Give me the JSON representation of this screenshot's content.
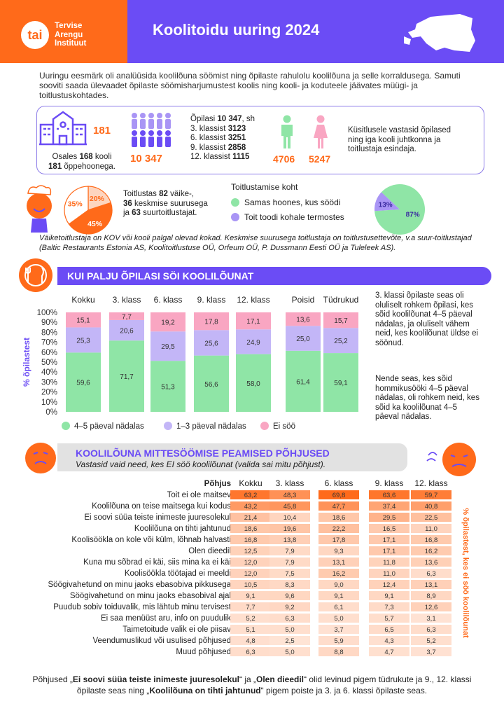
{
  "header": {
    "logo_abbr": "tai",
    "org_line1": "Tervise",
    "org_line2": "Arengu",
    "org_line3": "Instituut",
    "title": "Koolitoidu uuring 2024"
  },
  "intro": "Uuringu eesmärk oli analüüsida koolilõuna söömist ning õpilaste rahulolu koolilõuna ja selle korraldusega. Samuti sooviti saada ülevaadet õpilaste söömisharjumustest koolis ning kooli- ja koduteele jäävates müügi- ja toitlustuskohtades.",
  "stats": {
    "buildings": "181",
    "schools_pre": "Osales ",
    "schools_n": "168",
    "schools_post": " kooli",
    "buildings_n": "181",
    "buildings_post": " õppehoonega.",
    "students_total": "10 347",
    "students_pre": "Õpilasi ",
    "students_n": "10 347",
    "students_post": ", sh",
    "grades": [
      {
        "label": "3. klassist",
        "value": "3123"
      },
      {
        "label": "6. klassist",
        "value": "3251"
      },
      {
        "label": "9. klassist",
        "value": "2858"
      },
      {
        "label": "12. klassist",
        "value": "1115"
      }
    ],
    "boys": "4706",
    "girls": "5247",
    "respondents": "Küsitlusele vastasid õpilased ning iga kooli juhtkonna ja toitlustaja esindaja."
  },
  "caterers": {
    "pie": [
      {
        "label": "20%",
        "value": 20,
        "color": "#fdd5bf"
      },
      {
        "label": "45%",
        "value": 45,
        "color": "#ff6a1a"
      },
      {
        "label": "35%",
        "value": 35,
        "color": "#ffffff"
      }
    ],
    "t1": "Toitlustas ",
    "n_small": "82",
    "t2": " väike-,",
    "n_mid": "36",
    "t3": " keskmise suurusega",
    "t4": "ja ",
    "n_big": "63",
    "t5": " suurtoitlustajat.",
    "place_title": "Toitlustamise koht",
    "place_items": [
      {
        "label": "Samas hoones, kus söödi",
        "color": "#8fe5a6"
      },
      {
        "label": "Toit toodi kohale termostes",
        "color": "#a995f5"
      }
    ],
    "place_pie": [
      {
        "label": "87%",
        "value": 87
      },
      {
        "label": "13%",
        "value": 13
      }
    ],
    "note": "Väiketoitlustaja on KOV või kooli palgal olevad kokad. Keskmise suurusega toitlustaja on toitlustusettevõte, v.a suur-toitlustajad (Baltic Restaurants Estonia AS, Koolitoitlustuse OÜ, Orfeum OÜ, P. Dussmann Eesti OÜ ja Tuleleek AS)."
  },
  "section1": {
    "title": "KUI PALJU ÕPILASI SÖI KOOLILÕUNAT",
    "ylabel": "% õpilastest",
    "side_text1": "3. klassi õpilaste seas oli oluliselt rohkem õpilasi, kes sõid koolilõunat 4–5 päeval nädalas, ja oluliselt vähem neid, kes koolilõunat üldse ei söönud.",
    "side_text2": "Nende seas, kes sõid hommikusööki 4–5 päeval nädalas, oli rohkem neid, kes sõid ka koolilõunat 4–5 päeval nädalas."
  },
  "chart_data": {
    "type": "bar",
    "stacked": true,
    "categories": [
      "Kokku",
      "3. klass",
      "6. klass",
      "9. klass",
      "12. klass",
      "Poisid",
      "Tüdrukud"
    ],
    "yticks": [
      "100%",
      "90%",
      "80%",
      "70%",
      "60%",
      "50%",
      "40%",
      "30%",
      "20%",
      "10%",
      "0%"
    ],
    "ylim": [
      0,
      100
    ],
    "series": [
      {
        "name": "4–5 päeval nädalas",
        "color": "#8fe5a6",
        "values": [
          59.6,
          71.7,
          51.3,
          56.6,
          58.0,
          61.4,
          59.1
        ],
        "labels": [
          "59,6",
          "71,7",
          "51,3",
          "56,6",
          "58,0",
          "61,4",
          "59,1"
        ]
      },
      {
        "name": "1–3 päeval nädalas",
        "color": "#c3b6f7",
        "values": [
          25.3,
          20.6,
          29.5,
          25.6,
          24.9,
          25.0,
          25.2
        ],
        "labels": [
          "25,3",
          "20,6",
          "29,5",
          "25,6",
          "24,9",
          "25,0",
          "25,2"
        ]
      },
      {
        "name": "Ei söö",
        "color": "#f9a6c2",
        "values": [
          15.1,
          7.7,
          19.2,
          17.8,
          17.1,
          13.6,
          15.7
        ],
        "labels": [
          "15,1",
          "7,7",
          "19,2",
          "17,8",
          "17,1",
          "13,6",
          "15,7"
        ]
      }
    ]
  },
  "section2": {
    "title": "KOOLILÕUNA MITTESÖÖMISE PEAMISED PÕHJUSED",
    "subtitle": "Vastasid vaid need, kes EI söö koolilõunat (valida sai mitu põhjust).",
    "header_reason": "Põhjus",
    "columns": [
      "Kokku",
      "3. klass",
      "6. klass",
      "9. klass",
      "12. klass"
    ],
    "side_label": "% õpilastest, kes ei söö koolilõunat",
    "rows": [
      {
        "reason": "Toit ei ole maitsev",
        "values": [
          "63,2",
          "48,3",
          "69,8",
          "63,6",
          "59,7"
        ]
      },
      {
        "reason": "Koolilõuna on teise maitsega kui kodus",
        "values": [
          "43,2",
          "45,8",
          "47,7",
          "37,4",
          "40,8"
        ]
      },
      {
        "reason": "Ei soovi süüa teiste inimeste juuresolekul",
        "values": [
          "21,4",
          "10,4",
          "18,6",
          "29,5",
          "22,5"
        ]
      },
      {
        "reason": "Koolilõuna on tihti jahtunud",
        "values": [
          "18,6",
          "19,6",
          "22,2",
          "16,5",
          "11,0"
        ]
      },
      {
        "reason": "Koolisöökla on kole või külm, lõhnab halvasti",
        "values": [
          "16,8",
          "13,8",
          "17,8",
          "17,1",
          "16,8"
        ]
      },
      {
        "reason": "Olen dieedil",
        "values": [
          "12,5",
          "7,9",
          "9,3",
          "17,1",
          "16,2"
        ]
      },
      {
        "reason": "Kuna mu sõbrad ei käi, siis mina ka ei käi",
        "values": [
          "12,0",
          "7,9",
          "13,1",
          "11,8",
          "13,6"
        ]
      },
      {
        "reason": "Koolisöökla töötajad ei meeldi",
        "values": [
          "12,0",
          "7,5",
          "16,2",
          "11,0",
          "6,3"
        ]
      },
      {
        "reason": "Söögivahetund on minu jaoks ebasobiva pikkusega",
        "values": [
          "10,5",
          "8,3",
          "9,0",
          "12,4",
          "13,1"
        ]
      },
      {
        "reason": "Söögivahetund on minu jaoks ebasobival ajal",
        "values": [
          "9,1",
          "9,6",
          "9,1",
          "9,1",
          "8,9"
        ]
      },
      {
        "reason": "Puudub sobiv toiduvalik, mis lähtub minu tervisest",
        "values": [
          "7,7",
          "9,2",
          "6,1",
          "7,3",
          "12,6"
        ]
      },
      {
        "reason": "Ei saa menüüst aru, info on puudulik",
        "values": [
          "5,2",
          "6,3",
          "5,0",
          "5,7",
          "3,1"
        ]
      },
      {
        "reason": "Taimetoitude valik ei ole piisav",
        "values": [
          "5,1",
          "5,0",
          "3,7",
          "6,5",
          "6,3"
        ]
      },
      {
        "reason": "Veendumuslikud või usulised põhjused",
        "values": [
          "4,8",
          "2,5",
          "5,9",
          "4,3",
          "5,2"
        ]
      },
      {
        "reason": "Muud põhjused",
        "values": [
          "6,3",
          "5,0",
          "8,8",
          "4,7",
          "3,7"
        ]
      }
    ]
  },
  "footer": {
    "p1": "Põhjused „",
    "b1": "Ei soovi süüa teiste inimeste juuresolekul",
    "p2": "“ ja „",
    "b2": "Olen dieedil",
    "p3": "“ olid levinud pigem tüdrukute ja 9., 12. klassi õpilaste seas ning „",
    "b3": "Koolilõuna on tihti jahtunud",
    "p4": "“ pigem poiste ja 3. ja 6. klassi õpilaste seas."
  }
}
